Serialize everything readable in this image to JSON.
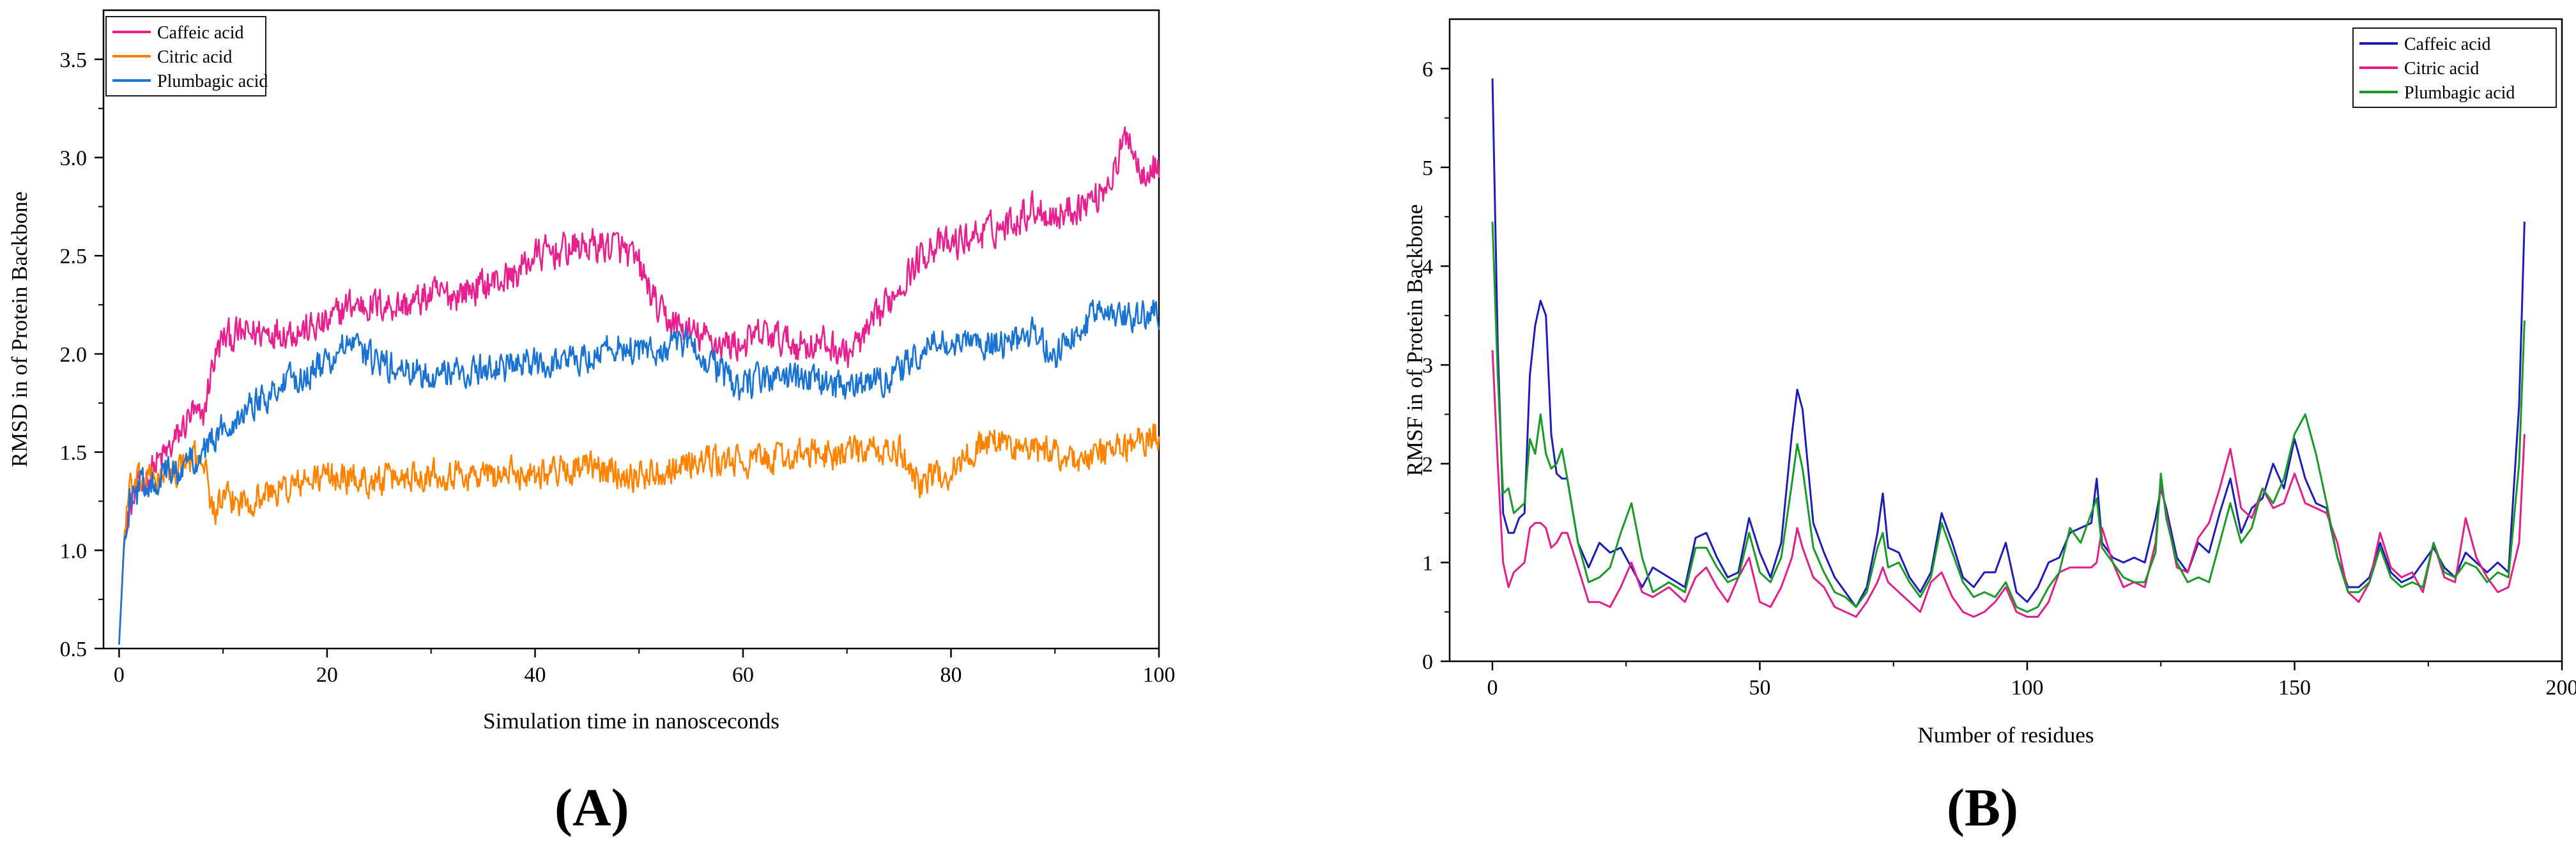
{
  "panels": [
    {
      "label": "(A)",
      "chart_data": {
        "type": "line",
        "title": "",
        "xlabel": "Simulation time in nanosceconds",
        "ylabel": "RMSD in of  Protein Backbone",
        "xlim": [
          -1.5,
          100
        ],
        "ylim": [
          0.5,
          3.75
        ],
        "xticks": [
          0,
          20,
          40,
          60,
          80,
          100
        ],
        "yticks": [
          0.5,
          1.0,
          1.5,
          2.0,
          2.5,
          3.0,
          3.5
        ],
        "ytick_labels": [
          "0.5",
          "1.0",
          "1.5",
          "2.0",
          "2.5",
          "3.0",
          "3.5"
        ],
        "legend_position": "top-left",
        "grid": false,
        "noise_sampled": true,
        "series": [
          {
            "name": "Caffeic acid",
            "color": "#ea1f8f",
            "x": [
              0,
              0.5,
              1,
              2,
              3,
              5,
              7,
              8,
              9,
              10,
              12,
              15,
              18,
              20,
              22,
              25,
              28,
              30,
              32,
              35,
              38,
              40,
              42,
              45,
              48,
              50,
              52,
              55,
              58,
              60,
              62,
              65,
              68,
              70,
              72,
              75,
              78,
              80,
              82,
              85,
              88,
              90,
              92,
              94,
              96,
              97,
              98,
              100
            ],
            "values": [
              0.52,
              1.05,
              1.2,
              1.32,
              1.4,
              1.52,
              1.7,
              1.65,
              1.95,
              2.08,
              2.1,
              2.12,
              2.12,
              2.15,
              2.25,
              2.25,
              2.25,
              2.3,
              2.3,
              2.35,
              2.4,
              2.5,
              2.52,
              2.55,
              2.55,
              2.45,
              2.2,
              2.1,
              2.05,
              2.05,
              2.1,
              2.05,
              2.05,
              2.0,
              2.1,
              2.35,
              2.55,
              2.55,
              2.6,
              2.65,
              2.75,
              2.7,
              2.75,
              2.8,
              2.95,
              3.15,
              2.95,
              2.95
            ],
            "amplitude": 0.12
          },
          {
            "name": "Citric acid",
            "color": "#ff8200",
            "x": [
              0,
              0.5,
              1,
              2,
              4,
              6,
              8,
              9,
              10,
              12,
              15,
              20,
              25,
              30,
              35,
              40,
              45,
              50,
              55,
              60,
              65,
              70,
              75,
              77,
              80,
              83,
              85,
              88,
              90,
              93,
              95,
              98,
              100
            ],
            "values": [
              0.52,
              1.08,
              1.3,
              1.35,
              1.38,
              1.42,
              1.5,
              1.2,
              1.25,
              1.25,
              1.3,
              1.38,
              1.35,
              1.4,
              1.38,
              1.4,
              1.42,
              1.38,
              1.45,
              1.45,
              1.48,
              1.5,
              1.5,
              1.35,
              1.4,
              1.55,
              1.55,
              1.5,
              1.5,
              1.45,
              1.5,
              1.55,
              1.6
            ],
            "amplitude": 0.11
          },
          {
            "name": "Plumbagic acid",
            "color": "#1873d3",
            "x": [
              0,
              0.5,
              1,
              2,
              4,
              6,
              8,
              10,
              12,
              15,
              18,
              20,
              22,
              25,
              28,
              30,
              35,
              40,
              45,
              48,
              50,
              52,
              55,
              58,
              60,
              62,
              65,
              68,
              70,
              72,
              75,
              78,
              80,
              85,
              88,
              90,
              93,
              95,
              97,
              100
            ],
            "values": [
              0.52,
              1.05,
              1.28,
              1.32,
              1.38,
              1.42,
              1.5,
              1.62,
              1.72,
              1.82,
              1.9,
              1.95,
              2.05,
              1.95,
              1.9,
              1.9,
              1.92,
              1.95,
              1.98,
              2.05,
              2.0,
              2.02,
              2.05,
              1.9,
              1.82,
              1.88,
              1.88,
              1.85,
              1.82,
              1.85,
              1.9,
              2.05,
              2.05,
              2.05,
              2.1,
              2.0,
              2.15,
              2.25,
              2.2,
              2.2
            ],
            "amplitude": 0.11
          }
        ]
      }
    },
    {
      "label": "(B)",
      "chart_data": {
        "type": "line",
        "title": "",
        "xlabel": "Number of residues",
        "ylabel": "RMSF in of  Protein Backbone",
        "xlim": [
          -8,
          200
        ],
        "ylim": [
          0,
          6.5
        ],
        "xticks": [
          0,
          50,
          100,
          150,
          200
        ],
        "yticks": [
          0,
          1,
          2,
          3,
          4,
          5,
          6
        ],
        "ytick_labels": [
          "0",
          "1",
          "2",
          "3",
          "4",
          "5",
          "6"
        ],
        "legend_position": "top-right",
        "grid": false,
        "series": [
          {
            "name": "Caffeic acid",
            "color": "#1c1cb8",
            "x": [
              0,
              1,
              2,
              3,
              4,
              5,
              6,
              7,
              8,
              9,
              10,
              11,
              12,
              13,
              14,
              16,
              18,
              20,
              22,
              24,
              26,
              28,
              30,
              33,
              36,
              38,
              40,
              42,
              44,
              46,
              48,
              50,
              52,
              54,
              56,
              57,
              58,
              60,
              62,
              64,
              66,
              68,
              70,
              72,
              73,
              74,
              76,
              78,
              80,
              82,
              84,
              86,
              88,
              90,
              92,
              94,
              96,
              98,
              100,
              102,
              104,
              106,
              108,
              110,
              112,
              113,
              114,
              116,
              118,
              120,
              122,
              124,
              125,
              126,
              128,
              130,
              132,
              134,
              136,
              138,
              140,
              142,
              144,
              146,
              148,
              150,
              152,
              154,
              156,
              158,
              160,
              162,
              164,
              166,
              168,
              170,
              172,
              174,
              176,
              178,
              180,
              182,
              184,
              186,
              188,
              190,
              192,
              193
            ],
            "values": [
              5.9,
              3.2,
              1.5,
              1.3,
              1.3,
              1.45,
              1.5,
              2.9,
              3.4,
              3.65,
              3.5,
              2.3,
              1.9,
              1.85,
              1.85,
              1.2,
              0.95,
              1.2,
              1.1,
              1.15,
              0.95,
              0.75,
              0.95,
              0.85,
              0.75,
              1.25,
              1.3,
              1.05,
              0.85,
              0.9,
              1.45,
              1.1,
              0.85,
              1.2,
              2.3,
              2.75,
              2.55,
              1.4,
              1.1,
              0.85,
              0.7,
              0.55,
              0.75,
              1.3,
              1.7,
              1.15,
              1.1,
              0.85,
              0.7,
              0.9,
              1.5,
              1.2,
              0.85,
              0.75,
              0.9,
              0.9,
              1.2,
              0.7,
              0.6,
              0.75,
              1.0,
              1.05,
              1.3,
              1.35,
              1.4,
              1.85,
              1.2,
              1.05,
              1.0,
              1.05,
              1.0,
              1.45,
              1.75,
              1.55,
              1.05,
              0.9,
              1.2,
              1.1,
              1.5,
              1.85,
              1.3,
              1.55,
              1.65,
              2.0,
              1.75,
              2.25,
              1.85,
              1.6,
              1.55,
              1.05,
              0.75,
              0.75,
              0.85,
              1.2,
              0.9,
              0.8,
              0.85,
              1.0,
              1.15,
              0.95,
              0.85,
              1.1,
              1.0,
              0.9,
              1.0,
              0.9,
              2.6,
              4.45
            ],
            "amplitude": 0
          },
          {
            "name": "Citric acid",
            "color": "#e31d8c",
            "x": [
              0,
              1,
              2,
              3,
              4,
              5,
              6,
              7,
              8,
              9,
              10,
              11,
              12,
              13,
              14,
              16,
              18,
              20,
              22,
              24,
              26,
              28,
              30,
              33,
              36,
              38,
              40,
              42,
              44,
              46,
              48,
              50,
              52,
              54,
              56,
              57,
              58,
              60,
              62,
              64,
              66,
              68,
              70,
              72,
              73,
              74,
              76,
              78,
              80,
              82,
              84,
              86,
              88,
              90,
              92,
              94,
              96,
              98,
              100,
              102,
              104,
              106,
              108,
              110,
              112,
              113,
              114,
              116,
              118,
              120,
              122,
              124,
              125,
              126,
              128,
              130,
              132,
              134,
              136,
              138,
              140,
              142,
              144,
              146,
              148,
              150,
              152,
              154,
              156,
              158,
              160,
              162,
              164,
              166,
              168,
              170,
              172,
              174,
              176,
              178,
              180,
              182,
              184,
              186,
              188,
              190,
              192,
              193
            ],
            "values": [
              3.15,
              2.0,
              1.0,
              0.75,
              0.9,
              0.95,
              1.0,
              1.35,
              1.4,
              1.4,
              1.35,
              1.15,
              1.2,
              1.3,
              1.3,
              0.95,
              0.6,
              0.6,
              0.55,
              0.75,
              1.0,
              0.7,
              0.65,
              0.75,
              0.6,
              0.85,
              0.95,
              0.75,
              0.6,
              0.85,
              1.05,
              0.6,
              0.55,
              0.75,
              1.05,
              1.35,
              1.15,
              0.85,
              0.75,
              0.55,
              0.5,
              0.45,
              0.6,
              0.8,
              0.95,
              0.8,
              0.7,
              0.6,
              0.5,
              0.8,
              0.9,
              0.65,
              0.5,
              0.45,
              0.5,
              0.6,
              0.75,
              0.5,
              0.45,
              0.45,
              0.6,
              0.9,
              0.95,
              0.95,
              0.95,
              1.0,
              1.35,
              1.0,
              0.75,
              0.8,
              0.75,
              1.2,
              1.8,
              1.5,
              0.95,
              0.9,
              1.25,
              1.4,
              1.75,
              2.15,
              1.55,
              1.45,
              1.75,
              1.55,
              1.6,
              1.9,
              1.6,
              1.55,
              1.5,
              1.2,
              0.7,
              0.6,
              0.8,
              1.3,
              0.95,
              0.85,
              0.9,
              0.7,
              1.2,
              0.85,
              0.8,
              1.45,
              1.05,
              0.85,
              0.7,
              0.75,
              1.2,
              2.3
            ],
            "amplitude": 0
          },
          {
            "name": "Plumbagic acid",
            "color": "#169b24",
            "x": [
              0,
              1,
              2,
              3,
              4,
              5,
              6,
              7,
              8,
              9,
              10,
              11,
              12,
              13,
              14,
              16,
              18,
              20,
              22,
              24,
              26,
              28,
              30,
              33,
              36,
              38,
              40,
              42,
              44,
              46,
              48,
              50,
              52,
              54,
              56,
              57,
              58,
              60,
              62,
              64,
              66,
              68,
              70,
              72,
              73,
              74,
              76,
              78,
              80,
              82,
              84,
              86,
              88,
              90,
              92,
              94,
              96,
              98,
              100,
              102,
              104,
              106,
              108,
              110,
              112,
              113,
              114,
              116,
              118,
              120,
              122,
              124,
              125,
              126,
              128,
              130,
              132,
              134,
              136,
              138,
              140,
              142,
              144,
              146,
              148,
              150,
              152,
              154,
              156,
              158,
              160,
              162,
              164,
              166,
              168,
              170,
              172,
              174,
              176,
              178,
              180,
              182,
              184,
              186,
              188,
              190,
              192,
              193
            ],
            "values": [
              4.45,
              2.9,
              1.7,
              1.75,
              1.5,
              1.55,
              1.6,
              2.25,
              2.1,
              2.5,
              2.1,
              1.95,
              2.0,
              2.15,
              1.85,
              1.2,
              0.8,
              0.85,
              0.95,
              1.3,
              1.6,
              1.05,
              0.7,
              0.8,
              0.7,
              1.15,
              1.15,
              0.95,
              0.8,
              0.85,
              1.3,
              0.9,
              0.8,
              1.05,
              1.8,
              2.2,
              1.95,
              1.15,
              0.9,
              0.7,
              0.65,
              0.55,
              0.7,
              1.15,
              1.3,
              0.95,
              1.0,
              0.8,
              0.65,
              0.85,
              1.4,
              1.1,
              0.8,
              0.65,
              0.7,
              0.65,
              0.8,
              0.55,
              0.5,
              0.55,
              0.75,
              0.9,
              1.35,
              1.2,
              1.5,
              1.65,
              1.15,
              1.0,
              0.85,
              0.8,
              0.8,
              1.1,
              1.9,
              1.45,
              1.0,
              0.8,
              0.85,
              0.8,
              1.2,
              1.6,
              1.2,
              1.35,
              1.75,
              1.6,
              1.85,
              2.3,
              2.5,
              2.1,
              1.6,
              1.05,
              0.7,
              0.7,
              0.8,
              1.15,
              0.85,
              0.75,
              0.8,
              0.75,
              1.2,
              0.9,
              0.85,
              1.0,
              0.95,
              0.8,
              0.9,
              0.85,
              2.0,
              3.45
            ],
            "amplitude": 0
          }
        ]
      }
    }
  ]
}
